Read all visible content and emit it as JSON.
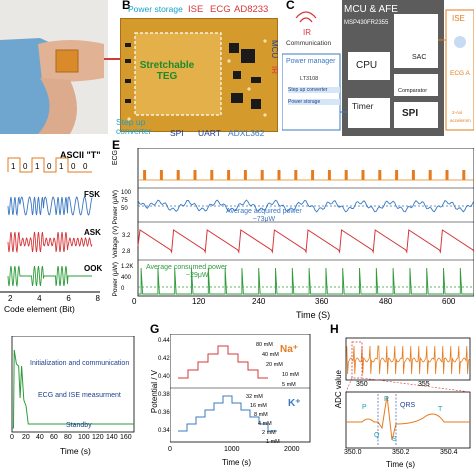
{
  "panels": {
    "b": {
      "letter": "B",
      "labels": {
        "power_storage": "Power storage",
        "ise": "ISE",
        "ecg": "ECG",
        "ad8233": "AD8233",
        "mcu": "MCU",
        "ir": "IR",
        "teg_line1": "Stretchable",
        "teg_line2": "TEG",
        "step_up_line1": "Step up",
        "step_up_line2": "converter",
        "spi": "SPI",
        "uart": "UART",
        "adxl": "ADXL362"
      }
    },
    "c": {
      "letter": "C",
      "communication": "Communication",
      "ir": "IR",
      "mcu_title": "MCU & AFE",
      "mcu_model": "MSP430FR2355",
      "cpu": "CPU",
      "sac": "SAC",
      "comparator": "Comparator",
      "timer": "Timer",
      "spi": "SPI",
      "pm_title": "Power manager",
      "pm_model": "LT3108",
      "step_up": "Step up converter",
      "power_storage": "Power storage",
      "ise": "ISE",
      "ecg_short": "ECG A",
      "accel": "accelerom",
      "axis2": "2-Axi"
    },
    "d": {
      "title": "ASCII \"T\"",
      "bits": [
        "1",
        "0",
        "1",
        "0",
        "1",
        "0",
        "0"
      ],
      "fsk": "FSK",
      "ask": "ASK",
      "ook": "OOK",
      "xlabel": "Code element (Bit)",
      "xticks": [
        "2",
        "4",
        "6",
        "8"
      ]
    },
    "e": {
      "letter": "E",
      "ylabels": {
        "ecg": "ECG",
        "power_acq": "Power (μW)",
        "voltage": "Voltage (V)",
        "power_con": "Power (μW)"
      },
      "acq_label1": "Average acquired power",
      "acq_label2": "~73μW",
      "con_label1": "Average consumed power",
      "con_label2": "~29μW",
      "acq_ticks": [
        "100",
        "75",
        "50"
      ],
      "volt_ticks": [
        "3.2",
        "2.8"
      ],
      "con_ticks": [
        "1.2K",
        "400",
        "0"
      ],
      "xlabel": "Time (S)",
      "xticks": [
        "0",
        "120",
        "240",
        "360",
        "480",
        "600"
      ]
    },
    "f": {
      "annotations": {
        "init": "Initialization and communication",
        "ecg_ise": "ECG and ISE measurment",
        "standby": "Standby"
      },
      "xlabel": "Time (s)",
      "xticks": [
        "0",
        "20",
        "40",
        "60",
        "80",
        "100",
        "120",
        "140",
        "160"
      ]
    },
    "g": {
      "letter": "G",
      "ylabel": "Potential / V",
      "xlabel": "Time (s)",
      "xticks": [
        "0",
        "1000",
        "2000"
      ],
      "yticks": [
        "0.44",
        "0.42",
        "0.40",
        "0.38",
        "0.36",
        "0.34"
      ],
      "na_label": "Na⁺",
      "k_label": "K⁺",
      "na_concs": [
        "80 mM",
        "40 mM",
        "20 mM",
        "10 mM",
        "5 mM"
      ],
      "k_concs": [
        "32 mM",
        "16 mM",
        "8 mM",
        "4 mM",
        "2 mM",
        "1 mM"
      ]
    },
    "h": {
      "letter": "H",
      "ylabel": "ADC value",
      "top_xticks": [
        "350",
        "355"
      ],
      "bottom_xticks": [
        "350.0",
        "350.2",
        "350.4"
      ],
      "xlabel": "Time (s)",
      "waves": {
        "p": "P",
        "q": "Q",
        "r": "R",
        "s": "S",
        "t": "T",
        "qrs": "QRS"
      }
    }
  },
  "colors": {
    "orange": "#e57b1e",
    "red": "#d6373a",
    "blue": "#3a78c2",
    "green": "#2e9b3a",
    "navy": "#1f3f8c",
    "pcb": "#d59a2c"
  }
}
